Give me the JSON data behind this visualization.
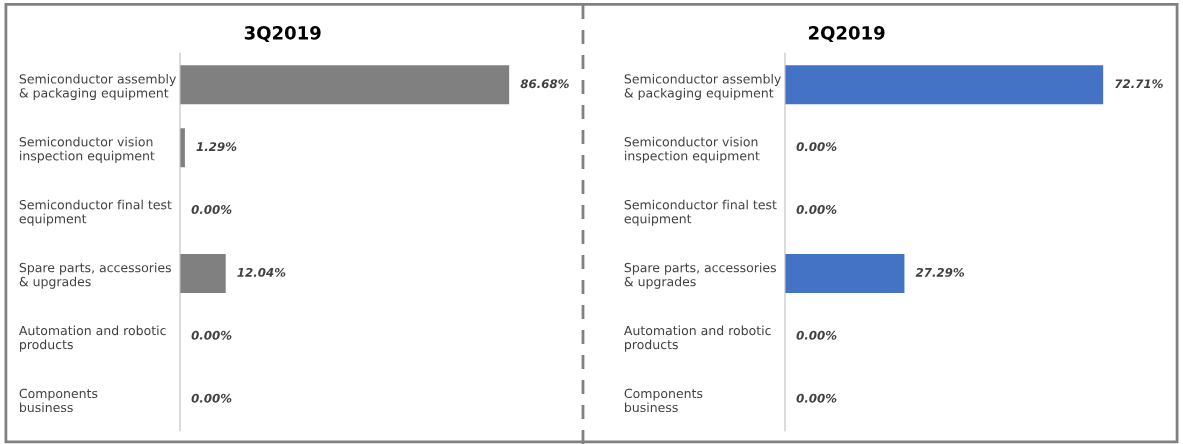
{
  "chart_data": [
    {
      "type": "bar",
      "orientation": "horizontal",
      "title": "3Q2019",
      "categories": [
        "Semiconductor assembly\n& packaging equipment",
        "Semiconductor vision\ninspection equipment",
        "Semiconductor final test\nequipment",
        "Spare parts, accessories\n& upgrades",
        "Automation and robotic\nproducts",
        "Components\nbusiness"
      ],
      "values": [
        86.68,
        1.29,
        0.0,
        12.04,
        0.0,
        0.0
      ],
      "color": "#808080",
      "value_labels": [
        "86.68%",
        "1.29%",
        "0.00%",
        "12.04%",
        "0.00%",
        "0.00%"
      ],
      "tick_labels": "y",
      "grid": false,
      "legend": false
    },
    {
      "type": "bar",
      "orientation": "horizontal",
      "title": "2Q2019",
      "categories": [
        "Semiconductor assembly\n& packaging equipment",
        "Semiconductor vision\ninspection equipment",
        "Semiconductor final test\nequipment",
        "Spare parts, accessories\n& upgrades",
        "Automation and robotic\nproducts",
        "Components\nbusiness"
      ],
      "values": [
        72.71,
        0.0,
        0.0,
        27.29,
        0.0,
        0.0
      ],
      "color": "#4472c4",
      "value_labels": [
        "72.71%",
        "0.00%",
        "0.00%",
        "27.29%",
        "0.00%",
        "0.00%"
      ],
      "tick_labels": "y",
      "grid": false,
      "legend": false
    }
  ]
}
